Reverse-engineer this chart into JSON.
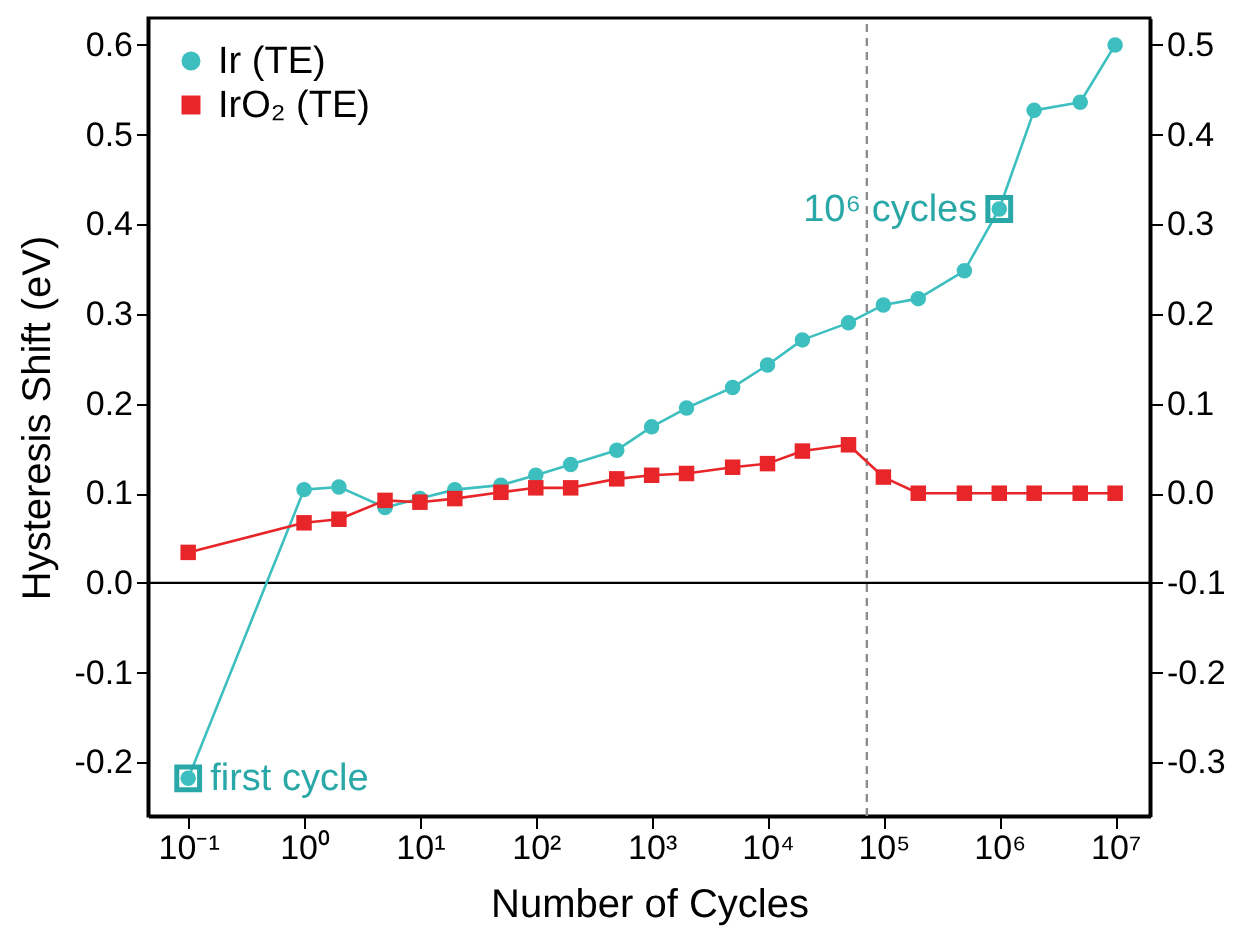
{
  "chart_data": {
    "type": "line",
    "xlabel": "Number of Cycles",
    "ylabel": "Hysteresis Shift (eV)",
    "log": "x",
    "x": [
      0.1,
      1,
      2,
      5,
      10,
      20,
      50,
      100,
      200,
      500,
      1000,
      2000,
      5000,
      10000,
      20000,
      50000,
      100000,
      200000,
      500000,
      1000000,
      2000000,
      5000000,
      10000000
    ],
    "series": [
      {
        "name": "Ir (TE)",
        "color": "#3dbfbf",
        "marker": "circle",
        "values": [
          -0.218,
          0.104,
          0.107,
          0.084,
          0.094,
          0.104,
          0.109,
          0.12,
          0.132,
          0.148,
          0.174,
          0.195,
          0.218,
          0.243,
          0.271,
          0.29,
          0.31,
          0.317,
          0.348,
          0.417,
          0.527,
          0.536,
          0.6
        ]
      },
      {
        "name": "IrO₂ (TE)",
        "color": "#e8262a",
        "marker": "square",
        "values": [
          0.034,
          0.067,
          0.071,
          0.092,
          0.09,
          0.094,
          0.101,
          0.106,
          0.106,
          0.116,
          0.12,
          0.122,
          0.129,
          0.133,
          0.147,
          0.154,
          0.118,
          0.1,
          0.1,
          0.1,
          0.1,
          0.1,
          0.1
        ]
      },
      {
        "type": "scatter",
        "color": "#2aa8a8",
        "marker": "square",
        "x": [
          0.1,
          1000000
        ],
        "values": [
          -0.218,
          0.417
        ]
      }
    ],
    "annotations": [
      {
        "text": "first cycle",
        "x": 0.1,
        "y": -0.218
      },
      {
        "text": "10⁶ cycles",
        "x": 1000000,
        "y": 0.417
      }
    ],
    "xlim": [
      0.045,
      20000000
    ],
    "xticks": [
      {
        "value": 0.1,
        "label": "10⁻¹"
      },
      {
        "value": 1,
        "label": "10⁰"
      },
      {
        "value": 10,
        "label": "10¹"
      },
      {
        "value": 100,
        "label": "10²"
      },
      {
        "value": 1000,
        "label": "10³"
      },
      {
        "value": 10000,
        "label": "10⁴"
      },
      {
        "value": 100000,
        "label": "10⁵"
      },
      {
        "value": 1000000,
        "label": "10⁶"
      },
      {
        "value": 10000000,
        "label": "10⁷"
      }
    ],
    "ylim": [
      -0.26,
      0.63
    ],
    "yticks": [
      {
        "value": -0.2,
        "label": "-0.2"
      },
      {
        "value": -0.1,
        "label": "-0.1"
      },
      {
        "value": 0,
        "label": "0.0"
      },
      {
        "value": 0.1,
        "label": "0.1"
      },
      {
        "value": 0.2,
        "label": "0.2"
      },
      {
        "value": 0.3,
        "label": "0.3"
      },
      {
        "value": 0.4,
        "label": "0.4"
      },
      {
        "value": 0.5,
        "label": "0.5"
      },
      {
        "value": 0.6,
        "label": "0.6"
      }
    ],
    "y2lim": [
      -0.36,
      0.53
    ],
    "y2ticks": [
      {
        "value": -0.3,
        "label": "-0.3"
      },
      {
        "value": -0.2,
        "label": "-0.2"
      },
      {
        "value": -0.1,
        "label": "-0.1"
      },
      {
        "value": 0,
        "label": "0.0"
      },
      {
        "value": 0.1,
        "label": "0.1"
      },
      {
        "value": 0.2,
        "label": "0.2"
      },
      {
        "value": 0.3,
        "label": "0.3"
      },
      {
        "value": 0.4,
        "label": "0.4"
      },
      {
        "value": 0.5,
        "label": "0.5"
      }
    ],
    "ref_lines": [
      {
        "axis": "y",
        "value": 0,
        "color": "#000000",
        "line_style": "solid"
      },
      {
        "axis": "x",
        "value": 72000,
        "color": "#8c8c8c",
        "line_style": "dashed"
      }
    ],
    "grid": false,
    "legend": "top left",
    "line_style": "solid"
  }
}
